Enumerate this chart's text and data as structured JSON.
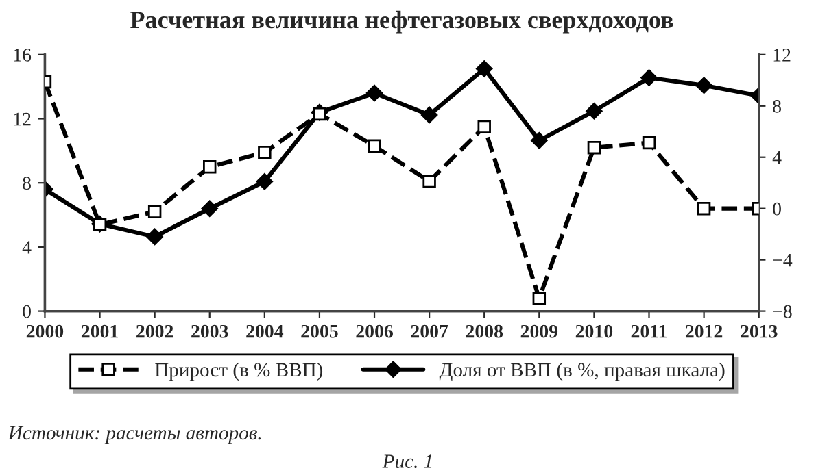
{
  "chart_data": {
    "type": "line",
    "title": "Расчетная величина нефтегазовых сверхдоходов",
    "categories": [
      "2000",
      "2001",
      "2002",
      "2003",
      "2004",
      "2005",
      "2006",
      "2007",
      "2008",
      "2009",
      "2010",
      "2011",
      "2012",
      "2013"
    ],
    "series": [
      {
        "name": "Прирост (в % ВВП)",
        "color": "#000000",
        "line_style": "dashed",
        "marker": "square",
        "values": [
          14.3,
          5.4,
          6.2,
          9.0,
          9.9,
          12.3,
          10.3,
          8.1,
          11.5,
          0.8,
          10.2,
          10.5,
          6.4,
          6.4
        ]
      },
      {
        "name": "Доля от ВВП (в %, правая шкала)",
        "color": "#000000",
        "line_style": "solid",
        "marker": "diamond",
        "axis": "y2",
        "values": [
          1.5,
          -1.2,
          -2.2,
          0.0,
          2.1,
          7.5,
          9.0,
          7.3,
          10.9,
          5.3,
          7.6,
          10.2,
          9.6,
          8.8
        ]
      }
    ],
    "ylim": [
      0,
      16
    ],
    "yticks": [
      0,
      4,
      8,
      12,
      16
    ],
    "y2lim": [
      -8,
      12
    ],
    "y2ticks": [
      -8,
      -4,
      0,
      4,
      8,
      12
    ],
    "grid": false,
    "legend": "bottom",
    "annotations": [
      "Источник: расчеты авторов.",
      "Рис. 1"
    ]
  }
}
